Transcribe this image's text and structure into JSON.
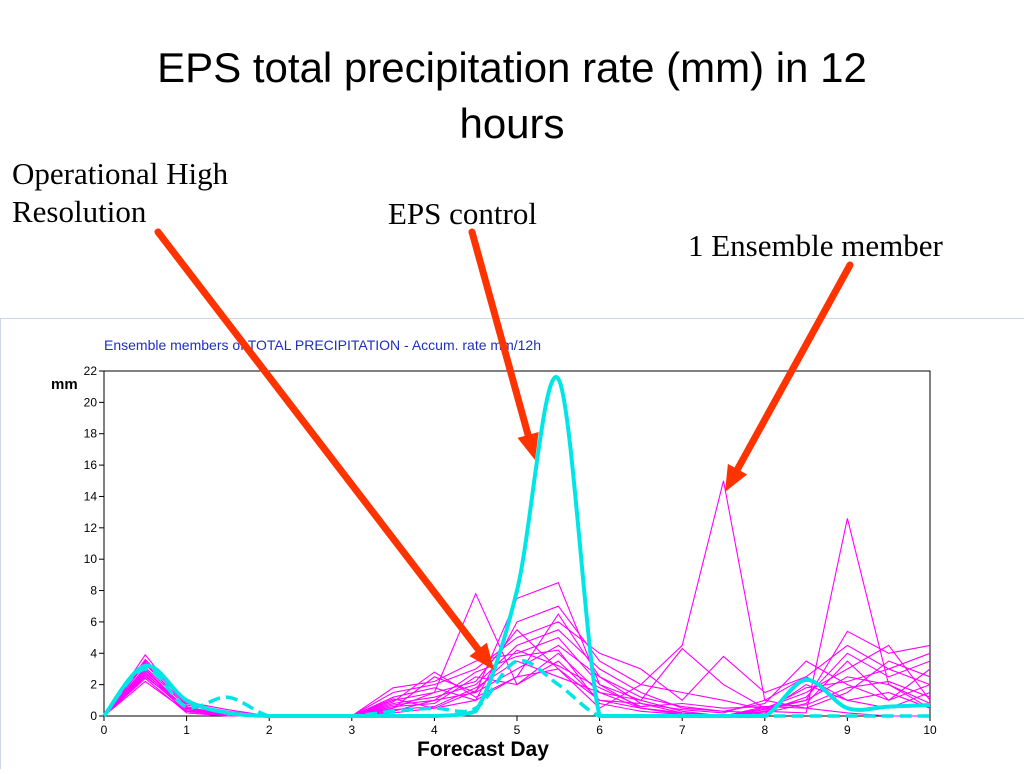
{
  "slide": {
    "title_line1": "EPS total precipitation rate (mm) in 12",
    "title_line2": "hours"
  },
  "callouts": {
    "operational_line1": "Operational High",
    "operational_line2": "Resolution",
    "control": "EPS control",
    "member": "1 Ensemble member"
  },
  "colors": {
    "arrow": "#ff3300",
    "ensemble": "#ff00ff",
    "control": "#00e5e5",
    "plot_title": "#1f2fbf"
  },
  "chart_data": {
    "type": "line",
    "title": "Ensemble members of TOTAL PRECIPITATION - Accum. rate mm/12h",
    "xlabel": "Forecast Day",
    "ylabel": "mm",
    "xlim": [
      0,
      10
    ],
    "ylim": [
      0,
      22
    ],
    "x_ticks": [
      0,
      1,
      2,
      3,
      4,
      5,
      6,
      7,
      8,
      9,
      10
    ],
    "y_ticks": [
      0,
      2,
      4,
      6,
      8,
      10,
      12,
      14,
      16,
      18,
      20,
      22
    ],
    "x_tick_labels": [
      "0",
      "1",
      "2",
      "3",
      "4",
      "5",
      "6",
      "7",
      "8",
      "9",
      "10"
    ],
    "y_tick_labels": [
      "0",
      "2",
      "4",
      "6",
      "8",
      "10",
      "12",
      "14",
      "16",
      "18",
      "20",
      "22"
    ],
    "x": [
      0,
      0.5,
      1,
      1.5,
      2,
      2.5,
      3,
      3.5,
      4,
      4.5,
      5,
      5.5,
      6,
      6.5,
      7,
      7.5,
      8,
      8.5,
      9,
      9.5,
      10
    ],
    "series": [
      {
        "role": "control",
        "style": "solid",
        "values": [
          0,
          3.2,
          1.0,
          0.2,
          0,
          0,
          0,
          0,
          0,
          0.3,
          8.0,
          21.5,
          0,
          0,
          0,
          0,
          0,
          2.3,
          0.5,
          0.6,
          0.7
        ]
      },
      {
        "role": "operational",
        "style": "dashed",
        "values": [
          0,
          3.0,
          0.6,
          1.2,
          0,
          0,
          0,
          0.3,
          0.5,
          0.5,
          3.5,
          2.0,
          0,
          0,
          0,
          0,
          0,
          0,
          0,
          0,
          0
        ]
      },
      {
        "role": "member",
        "values": [
          0,
          2.8,
          0.2,
          0,
          0,
          0,
          0,
          0.2,
          0.5,
          1.0,
          2.5,
          3.0,
          0.5,
          2.0,
          4.5,
          15.0,
          1.0,
          0.5,
          0.2,
          0,
          0
        ]
      },
      {
        "role": "member",
        "values": [
          0,
          3.9,
          0.6,
          0,
          0,
          0,
          0,
          1.0,
          1.5,
          7.8,
          2.0,
          4.0,
          1.5,
          0.5,
          0.2,
          0,
          0.3,
          0.2,
          12.6,
          2.0,
          0.5
        ]
      },
      {
        "role": "member",
        "values": [
          0,
          2.5,
          0.5,
          0.2,
          0,
          0,
          0,
          0.5,
          2.5,
          1.5,
          7.5,
          8.5,
          2.0,
          1.0,
          4.3,
          2.0,
          0.5,
          1.0,
          5.4,
          4.0,
          4.5
        ]
      },
      {
        "role": "member",
        "values": [
          0,
          3.5,
          0.8,
          0.3,
          0,
          0,
          0,
          1.5,
          2.0,
          3.0,
          5.0,
          6.0,
          4.0,
          3.0,
          1.0,
          3.8,
          1.5,
          2.5,
          4.5,
          3.0,
          2.0
        ]
      },
      {
        "role": "member",
        "values": [
          0,
          3.0,
          0.4,
          0,
          0,
          0,
          0,
          0.8,
          1.2,
          2.0,
          4.5,
          5.5,
          3.0,
          1.5,
          0.5,
          0.3,
          0.8,
          3.5,
          2.0,
          1.0,
          3.0
        ]
      },
      {
        "role": "member",
        "values": [
          0,
          2.2,
          0.3,
          0,
          0,
          0,
          0,
          0.3,
          1.0,
          1.5,
          3.0,
          4.5,
          2.5,
          0.8,
          0.2,
          0,
          0.5,
          1.5,
          3.0,
          4.5,
          1.0
        ]
      },
      {
        "role": "member",
        "values": [
          0,
          2.7,
          0.5,
          0.1,
          0,
          0,
          0,
          0.6,
          0.8,
          2.5,
          2.0,
          3.5,
          1.0,
          0.5,
          0.1,
          0,
          0.2,
          2.0,
          1.0,
          0.5,
          1.5
        ]
      },
      {
        "role": "member",
        "values": [
          0,
          3.3,
          0.7,
          0.2,
          0,
          0,
          0,
          1.2,
          1.8,
          1.0,
          6.0,
          7.0,
          3.5,
          2.0,
          1.5,
          1.0,
          0.4,
          1.0,
          2.5,
          2.0,
          0.8
        ]
      },
      {
        "role": "member",
        "values": [
          0,
          2.4,
          0.2,
          0,
          0,
          0,
          0,
          0.4,
          0.6,
          1.8,
          3.5,
          2.5,
          1.5,
          1.0,
          0.3,
          0,
          0.6,
          0.5,
          1.5,
          3.5,
          2.5
        ]
      },
      {
        "role": "member",
        "values": [
          0,
          3.6,
          0.9,
          0.4,
          0,
          0,
          0,
          1.8,
          2.2,
          3.5,
          4.0,
          5.0,
          2.0,
          0.5,
          0.2,
          0,
          0.3,
          1.2,
          4.0,
          2.5,
          3.5
        ]
      },
      {
        "role": "member",
        "values": [
          0,
          2.9,
          0.4,
          0.1,
          0,
          0,
          0,
          0.5,
          1.5,
          2.2,
          5.5,
          3.0,
          1.0,
          0.8,
          0.4,
          0.2,
          1.0,
          2.5,
          1.0,
          1.5,
          0.5
        ]
      },
      {
        "role": "member",
        "values": [
          0,
          3.1,
          0.6,
          0,
          0,
          0,
          0,
          0.9,
          2.8,
          1.2,
          2.5,
          6.5,
          2.5,
          1.2,
          0.6,
          0.3,
          0.2,
          0.8,
          3.5,
          1.0,
          2.0
        ]
      },
      {
        "role": "member",
        "values": [
          0,
          2.6,
          0.3,
          0.2,
          0,
          0,
          0,
          0.7,
          1.0,
          2.8,
          3.8,
          4.2,
          0.8,
          0.3,
          0.1,
          0,
          0.4,
          1.8,
          2.2,
          3.0,
          4.0
        ]
      },
      {
        "role": "member",
        "values": [
          0,
          3.4,
          0.5,
          0.1,
          0,
          0,
          0,
          1.1,
          0.5,
          1.6,
          4.2,
          3.2,
          1.8,
          0.6,
          0.8,
          0.5,
          0.6,
          0.7,
          1.8,
          2.2,
          1.2
        ]
      }
    ]
  }
}
